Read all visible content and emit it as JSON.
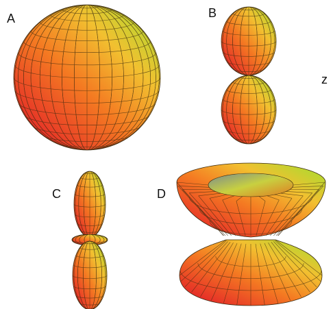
{
  "labels": {
    "a": "A",
    "b": "B",
    "c": "C",
    "d": "D",
    "axis": "z"
  }
}
